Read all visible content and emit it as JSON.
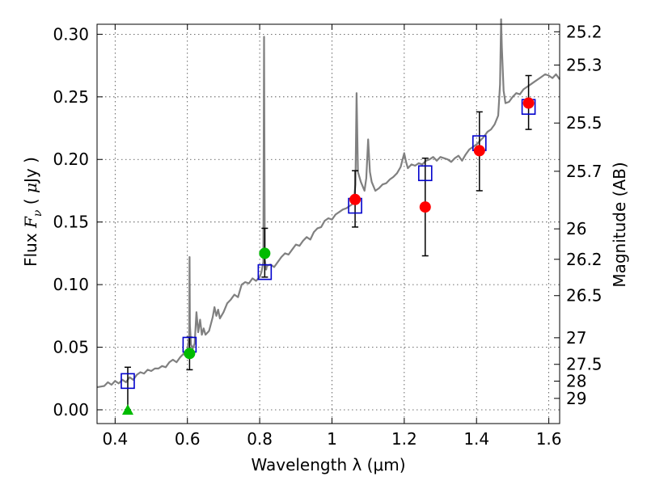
{
  "chart_data": {
    "type": "scatter",
    "xlabel": "Wavelength  λ (μm)",
    "ylabel": "Flux  F_ν ( μJy )",
    "y2label": "Magnitude (AB)",
    "xlim": [
      0.35,
      1.63
    ],
    "ylim": [
      -0.011,
      0.308
    ],
    "grid": true,
    "x_ticks": [
      "0.4",
      "0.6",
      "0.8",
      "1",
      "1.2",
      "1.4",
      "1.6"
    ],
    "y_ticks": [
      "0.00",
      "0.05",
      "0.10",
      "0.15",
      "0.20",
      "0.25",
      "0.30"
    ],
    "mag_ticks": [
      "25.2",
      "25.3",
      "25.5",
      "25.7",
      "26",
      "26.2",
      "26.5",
      "27",
      "27.5",
      "28",
      "29"
    ],
    "colors": {
      "spectrum": "#808080",
      "model_box": "#0000cc",
      "observed_green": "#00bb00",
      "observed_red": "#ff0000",
      "errorbar": "#000000"
    },
    "spectrum": [
      [
        0.35,
        0.018
      ],
      [
        0.37,
        0.019
      ],
      [
        0.38,
        0.022
      ],
      [
        0.39,
        0.02
      ],
      [
        0.4,
        0.023
      ],
      [
        0.41,
        0.021
      ],
      [
        0.42,
        0.024
      ],
      [
        0.43,
        0.022
      ],
      [
        0.44,
        0.026
      ],
      [
        0.45,
        0.024
      ],
      [
        0.46,
        0.028
      ],
      [
        0.47,
        0.03
      ],
      [
        0.48,
        0.029
      ],
      [
        0.49,
        0.032
      ],
      [
        0.5,
        0.031
      ],
      [
        0.51,
        0.033
      ],
      [
        0.52,
        0.033
      ],
      [
        0.53,
        0.035
      ],
      [
        0.54,
        0.034
      ],
      [
        0.55,
        0.038
      ],
      [
        0.56,
        0.04
      ],
      [
        0.57,
        0.038
      ],
      [
        0.58,
        0.042
      ],
      [
        0.59,
        0.045
      ],
      [
        0.595,
        0.043
      ],
      [
        0.6,
        0.047
      ],
      [
        0.605,
        0.06
      ],
      [
        0.606,
        0.122
      ],
      [
        0.607,
        0.068
      ],
      [
        0.61,
        0.052
      ],
      [
        0.615,
        0.049
      ],
      [
        0.62,
        0.053
      ],
      [
        0.625,
        0.078
      ],
      [
        0.63,
        0.062
      ],
      [
        0.635,
        0.072
      ],
      [
        0.64,
        0.06
      ],
      [
        0.645,
        0.065
      ],
      [
        0.65,
        0.06
      ],
      [
        0.66,
        0.063
      ],
      [
        0.67,
        0.074
      ],
      [
        0.675,
        0.082
      ],
      [
        0.68,
        0.075
      ],
      [
        0.685,
        0.08
      ],
      [
        0.69,
        0.073
      ],
      [
        0.7,
        0.078
      ],
      [
        0.71,
        0.085
      ],
      [
        0.72,
        0.088
      ],
      [
        0.73,
        0.092
      ],
      [
        0.74,
        0.09
      ],
      [
        0.75,
        0.1
      ],
      [
        0.76,
        0.102
      ],
      [
        0.77,
        0.101
      ],
      [
        0.78,
        0.105
      ],
      [
        0.79,
        0.103
      ],
      [
        0.8,
        0.106
      ],
      [
        0.805,
        0.11
      ],
      [
        0.81,
        0.118
      ],
      [
        0.812,
        0.298
      ],
      [
        0.814,
        0.12
      ],
      [
        0.818,
        0.112
      ],
      [
        0.82,
        0.115
      ],
      [
        0.83,
        0.116
      ],
      [
        0.84,
        0.114
      ],
      [
        0.85,
        0.118
      ],
      [
        0.86,
        0.122
      ],
      [
        0.87,
        0.125
      ],
      [
        0.88,
        0.124
      ],
      [
        0.89,
        0.128
      ],
      [
        0.9,
        0.132
      ],
      [
        0.91,
        0.131
      ],
      [
        0.92,
        0.135
      ],
      [
        0.93,
        0.138
      ],
      [
        0.94,
        0.136
      ],
      [
        0.95,
        0.142
      ],
      [
        0.96,
        0.145
      ],
      [
        0.97,
        0.146
      ],
      [
        0.98,
        0.151
      ],
      [
        0.99,
        0.153
      ],
      [
        1.0,
        0.152
      ],
      [
        1.01,
        0.156
      ],
      [
        1.02,
        0.158
      ],
      [
        1.03,
        0.16
      ],
      [
        1.04,
        0.161
      ],
      [
        1.05,
        0.163
      ],
      [
        1.06,
        0.165
      ],
      [
        1.065,
        0.18
      ],
      [
        1.068,
        0.253
      ],
      [
        1.072,
        0.19
      ],
      [
        1.08,
        0.182
      ],
      [
        1.09,
        0.175
      ],
      [
        1.095,
        0.185
      ],
      [
        1.1,
        0.216
      ],
      [
        1.105,
        0.19
      ],
      [
        1.11,
        0.182
      ],
      [
        1.12,
        0.175
      ],
      [
        1.13,
        0.177
      ],
      [
        1.14,
        0.18
      ],
      [
        1.15,
        0.181
      ],
      [
        1.16,
        0.184
      ],
      [
        1.17,
        0.186
      ],
      [
        1.18,
        0.189
      ],
      [
        1.19,
        0.194
      ],
      [
        1.2,
        0.205
      ],
      [
        1.205,
        0.198
      ],
      [
        1.21,
        0.193
      ],
      [
        1.22,
        0.196
      ],
      [
        1.23,
        0.195
      ],
      [
        1.24,
        0.197
      ],
      [
        1.25,
        0.196
      ],
      [
        1.26,
        0.199
      ],
      [
        1.27,
        0.2
      ],
      [
        1.28,
        0.202
      ],
      [
        1.29,
        0.199
      ],
      [
        1.3,
        0.202
      ],
      [
        1.31,
        0.201
      ],
      [
        1.32,
        0.2
      ],
      [
        1.33,
        0.198
      ],
      [
        1.34,
        0.201
      ],
      [
        1.35,
        0.203
      ],
      [
        1.36,
        0.199
      ],
      [
        1.37,
        0.204
      ],
      [
        1.38,
        0.208
      ],
      [
        1.39,
        0.21
      ],
      [
        1.4,
        0.212
      ],
      [
        1.41,
        0.215
      ],
      [
        1.42,
        0.218
      ],
      [
        1.43,
        0.222
      ],
      [
        1.44,
        0.224
      ],
      [
        1.45,
        0.228
      ],
      [
        1.46,
        0.235
      ],
      [
        1.465,
        0.26
      ],
      [
        1.468,
        0.312
      ],
      [
        1.47,
        0.29
      ],
      [
        1.475,
        0.255
      ],
      [
        1.48,
        0.245
      ],
      [
        1.49,
        0.246
      ],
      [
        1.5,
        0.25
      ],
      [
        1.51,
        0.253
      ],
      [
        1.52,
        0.252
      ],
      [
        1.53,
        0.256
      ],
      [
        1.54,
        0.258
      ],
      [
        1.55,
        0.26
      ],
      [
        1.56,
        0.262
      ],
      [
        1.57,
        0.264
      ],
      [
        1.58,
        0.266
      ],
      [
        1.59,
        0.268
      ],
      [
        1.6,
        0.267
      ],
      [
        1.61,
        0.265
      ],
      [
        1.62,
        0.268
      ],
      [
        1.63,
        0.264
      ]
    ],
    "model_boxes": [
      {
        "x": 0.435,
        "y": 0.023
      },
      {
        "x": 0.606,
        "y": 0.052
      },
      {
        "x": 0.814,
        "y": 0.11
      },
      {
        "x": 1.064,
        "y": 0.163
      },
      {
        "x": 1.258,
        "y": 0.189
      },
      {
        "x": 1.408,
        "y": 0.213
      },
      {
        "x": 1.544,
        "y": 0.242
      }
    ],
    "observed": [
      {
        "x": 0.435,
        "y": 0.0,
        "marker": "triangle",
        "color": "green",
        "yerr_lo": 0.0,
        "yerr_hi": 0.034
      },
      {
        "x": 0.606,
        "y": 0.045,
        "marker": "circle",
        "color": "green",
        "yerr_lo": 0.032,
        "yerr_hi": 0.058
      },
      {
        "x": 0.814,
        "y": 0.125,
        "marker": "circle",
        "color": "green",
        "yerr_lo": 0.106,
        "yerr_hi": 0.145
      },
      {
        "x": 1.064,
        "y": 0.168,
        "marker": "circle",
        "color": "red",
        "yerr_lo": 0.146,
        "yerr_hi": 0.191
      },
      {
        "x": 1.258,
        "y": 0.162,
        "marker": "circle",
        "color": "red",
        "yerr_lo": 0.123,
        "yerr_hi": 0.201
      },
      {
        "x": 1.408,
        "y": 0.207,
        "marker": "circle",
        "color": "red",
        "yerr_lo": 0.175,
        "yerr_hi": 0.238
      },
      {
        "x": 1.544,
        "y": 0.245,
        "marker": "circle",
        "color": "red",
        "yerr_lo": 0.224,
        "yerr_hi": 0.267
      }
    ]
  }
}
